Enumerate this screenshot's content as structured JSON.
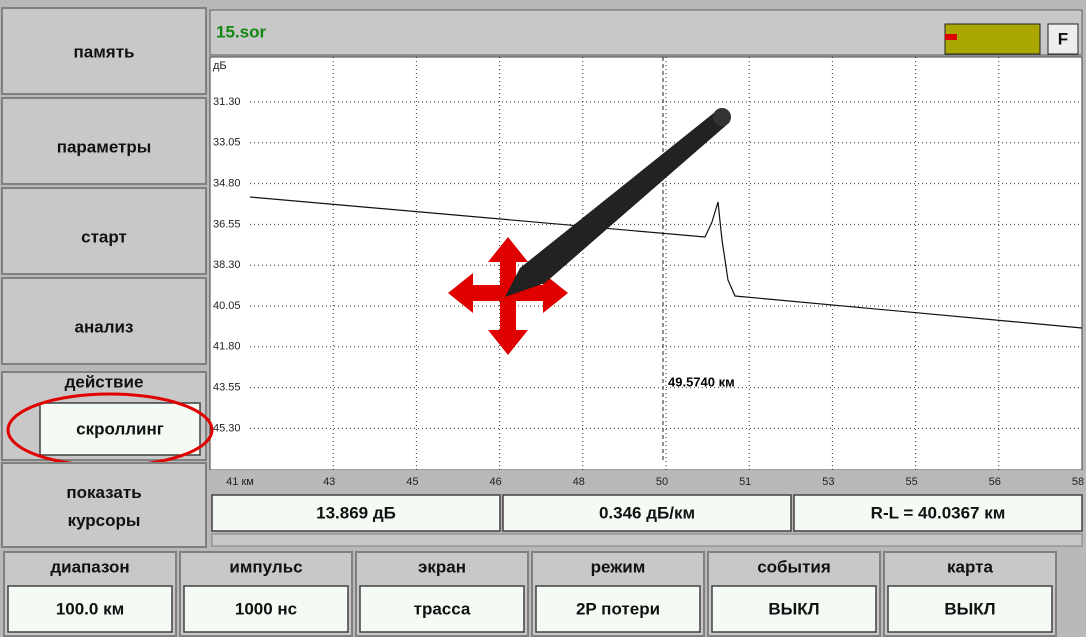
{
  "menu": [
    "память",
    "параметры",
    "старт",
    "анализ"
  ],
  "action": {
    "label": "действие",
    "value": "скроллинг"
  },
  "show_cursors": "показать курсоры",
  "file": "15.sor",
  "flag": "F",
  "plot": {
    "y_unit": "дБ",
    "y_labels": [
      "31.30",
      "33.05",
      "34.80",
      "36.55",
      "38.30",
      "40.05",
      "41.80",
      "43.55",
      "45.30"
    ],
    "x_labels": [
      "41 км",
      "43",
      "45",
      "46",
      "48",
      "50",
      "51",
      "53",
      "55",
      "56",
      "58"
    ],
    "cursor_label": "49.5740 км"
  },
  "readouts": [
    "13.869 дБ",
    "0.346 дБ/км",
    "R-L = 40.0367 км"
  ],
  "settings": [
    {
      "label": "диапазон",
      "value": "100.0 км"
    },
    {
      "label": "импульс",
      "value": "1000 нс"
    },
    {
      "label": "экран",
      "value": "трасса"
    },
    {
      "label": "режим",
      "value": "2P потери"
    },
    {
      "label": "события",
      "value": "ВЫКЛ"
    },
    {
      "label": "карта",
      "value": "ВЫКЛ"
    }
  ]
}
